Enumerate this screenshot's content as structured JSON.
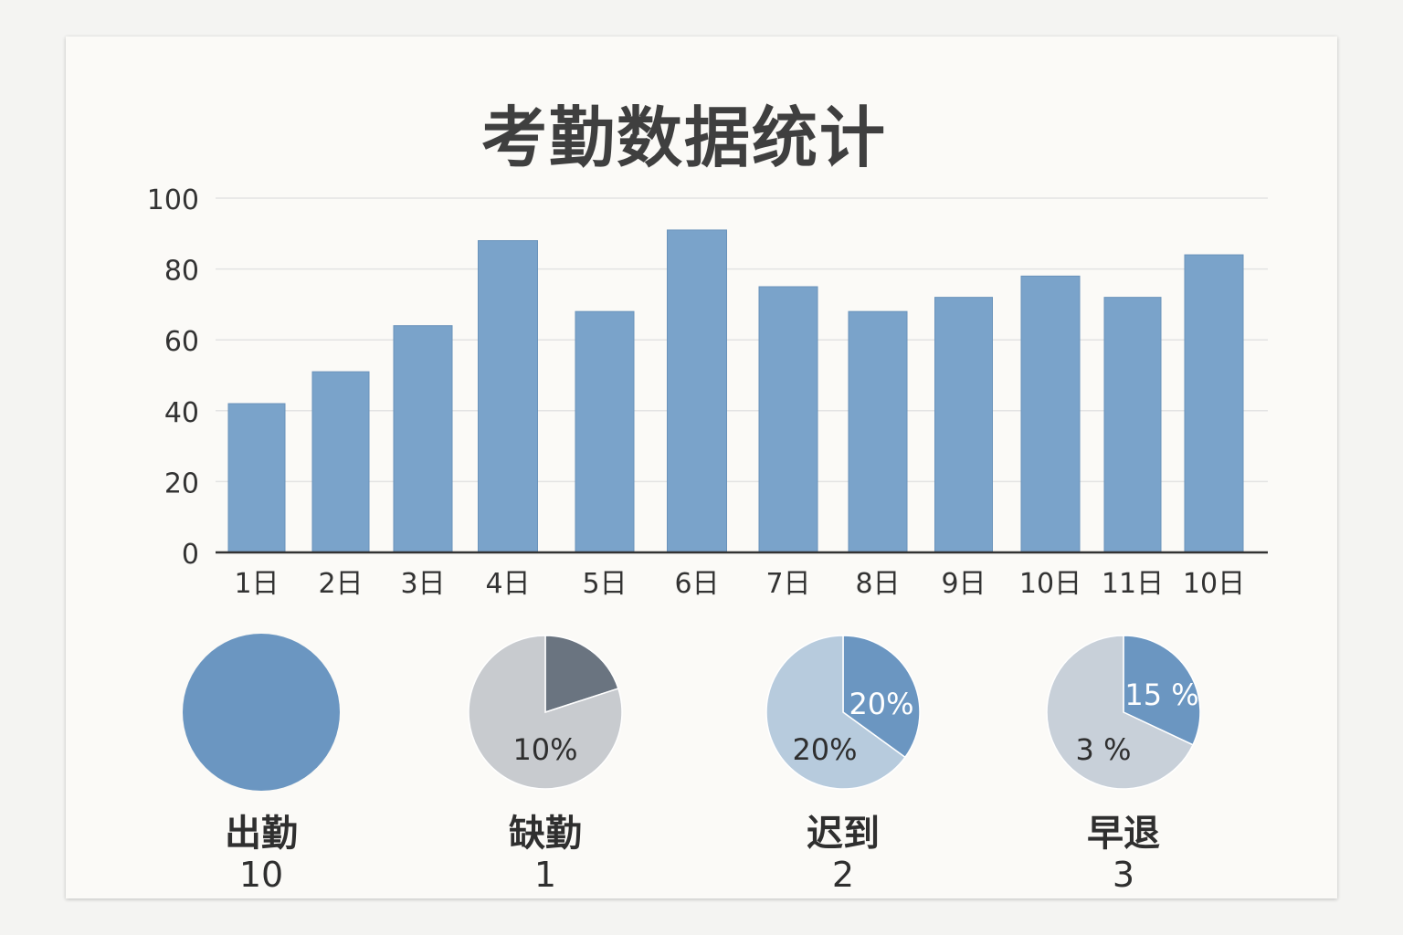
{
  "chart_data": [
    {
      "type": "bar",
      "title": "考勤数据统计",
      "categories": [
        "1日",
        "2日",
        "3日",
        "4日",
        "5日",
        "6日",
        "7日",
        "8日",
        "9日",
        "10日",
        "11日",
        "10日"
      ],
      "values": [
        42,
        51,
        64,
        88,
        68,
        91,
        75,
        68,
        72,
        78,
        72,
        84
      ],
      "ylim": [
        0,
        100
      ],
      "yticks": [
        0,
        20,
        40,
        60,
        80,
        100
      ],
      "grid": true,
      "color": "#7aa3ca"
    },
    {
      "type": "pie",
      "label": "出勤",
      "count": "10",
      "slices": [
        {
          "value": 100,
          "color": "#6b96c1",
          "label": ""
        }
      ]
    },
    {
      "type": "pie",
      "label": "缺勤",
      "count": "1",
      "slices": [
        {
          "value": 20,
          "color": "#6a7480",
          "label": ""
        },
        {
          "value": 80,
          "color": "#c8cbcf",
          "label": "10%"
        }
      ]
    },
    {
      "type": "pie",
      "label": "迟到",
      "count": "2",
      "slices": [
        {
          "value": 35,
          "color": "#6b96c1",
          "label": "20%"
        },
        {
          "value": 65,
          "color": "#b7cbdd",
          "label": "20%"
        }
      ]
    },
    {
      "type": "pie",
      "label": "早退",
      "count": "3",
      "slices": [
        {
          "value": 32,
          "color": "#6b96c1",
          "label": "15 %"
        },
        {
          "value": 68,
          "color": "#c8d0d9",
          "label": "3 %"
        }
      ]
    }
  ]
}
